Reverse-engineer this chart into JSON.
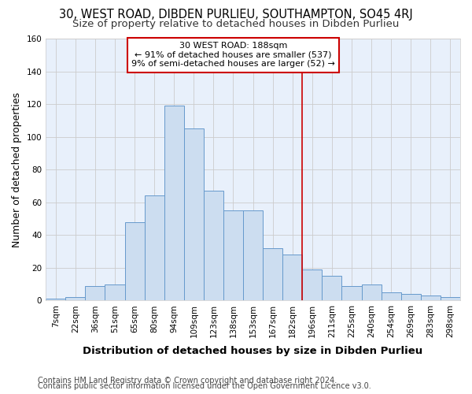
{
  "title": "30, WEST ROAD, DIBDEN PURLIEU, SOUTHAMPTON, SO45 4RJ",
  "subtitle": "Size of property relative to detached houses in Dibden Purlieu",
  "xlabel": "Distribution of detached houses by size in Dibden Purlieu",
  "ylabel": "Number of detached properties",
  "bar_labels": [
    "7sqm",
    "22sqm",
    "36sqm",
    "51sqm",
    "65sqm",
    "80sqm",
    "94sqm",
    "109sqm",
    "123sqm",
    "138sqm",
    "153sqm",
    "167sqm",
    "182sqm",
    "196sqm",
    "211sqm",
    "225sqm",
    "240sqm",
    "254sqm",
    "269sqm",
    "283sqm",
    "298sqm"
  ],
  "bar_values": [
    1,
    2,
    9,
    10,
    48,
    64,
    119,
    105,
    67,
    55,
    55,
    32,
    28,
    19,
    15,
    9,
    10,
    5,
    4,
    3,
    2
  ],
  "bar_color": "#ccddf0",
  "bar_edge_color": "#6699cc",
  "background_color": "#e8f0fb",
  "grid_color": "#cccccc",
  "vline_x": 12.5,
  "vline_color": "#cc0000",
  "annotation_text": "30 WEST ROAD: 188sqm\n← 91% of detached houses are smaller (537)\n9% of semi-detached houses are larger (52) →",
  "annotation_box_color": "#cc0000",
  "ylim": [
    0,
    160
  ],
  "yticks": [
    0,
    20,
    40,
    60,
    80,
    100,
    120,
    140,
    160
  ],
  "footer1": "Contains HM Land Registry data © Crown copyright and database right 2024.",
  "footer2": "Contains public sector information licensed under the Open Government Licence v3.0.",
  "title_fontsize": 10.5,
  "subtitle_fontsize": 9.5,
  "tick_fontsize": 7.5,
  "ylabel_fontsize": 9,
  "xlabel_fontsize": 9.5,
  "footer_fontsize": 7.0
}
